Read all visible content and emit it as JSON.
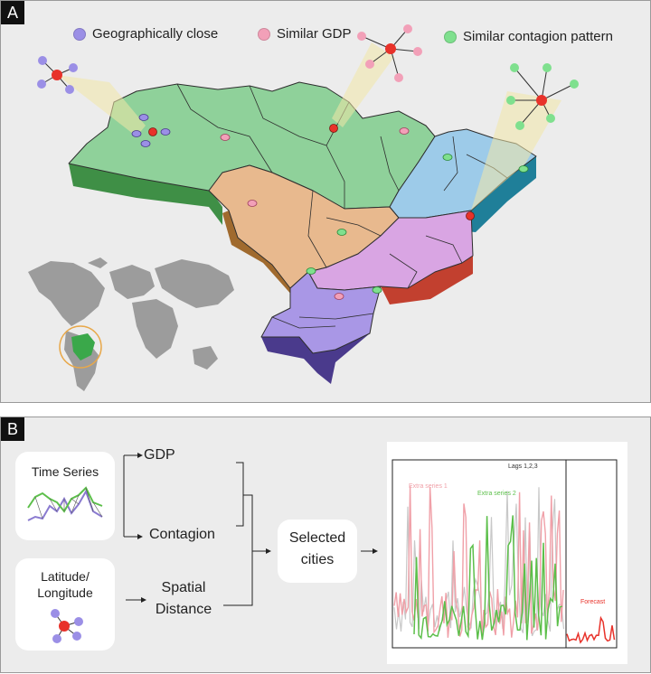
{
  "panel_a": {
    "letter": "A",
    "legend": [
      {
        "label": "Geographically close",
        "color": "#9b8fe6"
      },
      {
        "label": "Similar GDP",
        "color": "#f2a0b8"
      },
      {
        "label": "Similar contagion pattern",
        "color": "#7fe08e"
      }
    ],
    "colors": {
      "north": "#8fd19a",
      "north_side": "#3f8f46",
      "center_west": "#e8b98e",
      "center_west_side": "#a06a2e",
      "northeast": "#9dcbe9",
      "northeast_side": "#1f7f99",
      "southeast": "#d9a5e3",
      "southeast_side": "#c2402f",
      "south": "#a997e6",
      "south_side": "#4a3a8c",
      "target_node": "#e8322a"
    }
  },
  "panel_b": {
    "letter": "B",
    "time_series_label": "Time Series",
    "lat_label_1": "Latitude/",
    "lat_label_2": "Longitude",
    "gdp_label": "GDP",
    "contagion_label": "Contagion",
    "spatial_label_1": "Spatial",
    "spatial_label_2": "Distance",
    "selected_label_1": "Selected",
    "selected_label_2": "cities",
    "chart": {
      "extra1_label": "Extra series 1",
      "extra2_label": "Extra series 2",
      "lags_label": "Lags 1,2,3",
      "forecast_label": "Forecast",
      "colors": {
        "extra1": "#f0a0a8",
        "extra2": "#5cbf4a",
        "lags": "#c8c8c8",
        "forecast": "#e8322a"
      }
    }
  }
}
